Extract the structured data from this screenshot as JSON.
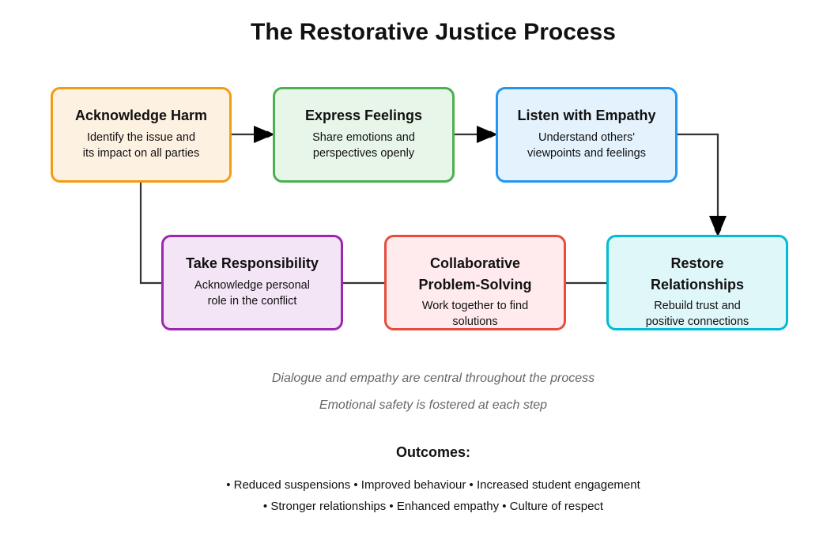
{
  "title": "The Restorative Justice Process",
  "steps": [
    {
      "title": "Acknowledge Harm",
      "description": "Identify the issue and\nits impact on all parties",
      "border_color": "#f39c12",
      "fill_color": "#fdf1e1"
    },
    {
      "title": "Express Feelings",
      "description": "Share emotions and\nperspectives openly",
      "border_color": "#4caf50",
      "fill_color": "#e8f5e9"
    },
    {
      "title": "Listen with Empathy",
      "description": "Understand others'\nviewpoints and feelings",
      "border_color": "#2196f3",
      "fill_color": "#e3f2fd"
    },
    {
      "title": "Take Responsibility",
      "description": "Acknowledge personal\nrole in the conflict",
      "border_color": "#9c27b0",
      "fill_color": "#f3e5f5"
    },
    {
      "title": "Collaborative\nProblem-Solving",
      "description": "Work together to find\nsolutions",
      "border_color": "#e74c3c",
      "fill_color": "#ffebee"
    },
    {
      "title": "Restore\nRelationships",
      "description": "Rebuild trust and\npositive connections",
      "border_color": "#00bcd4",
      "fill_color": "#e0f7fa"
    }
  ],
  "notes": [
    "Dialogue and empathy are central throughout the process",
    "Emotional safety is fostered at each step"
  ],
  "outcomes": {
    "title": "Outcomes:",
    "lines": [
      "• Reduced suspensions • Improved behaviour • Increased student engagement",
      "• Stronger relationships • Enhanced empathy • Culture of respect"
    ]
  }
}
